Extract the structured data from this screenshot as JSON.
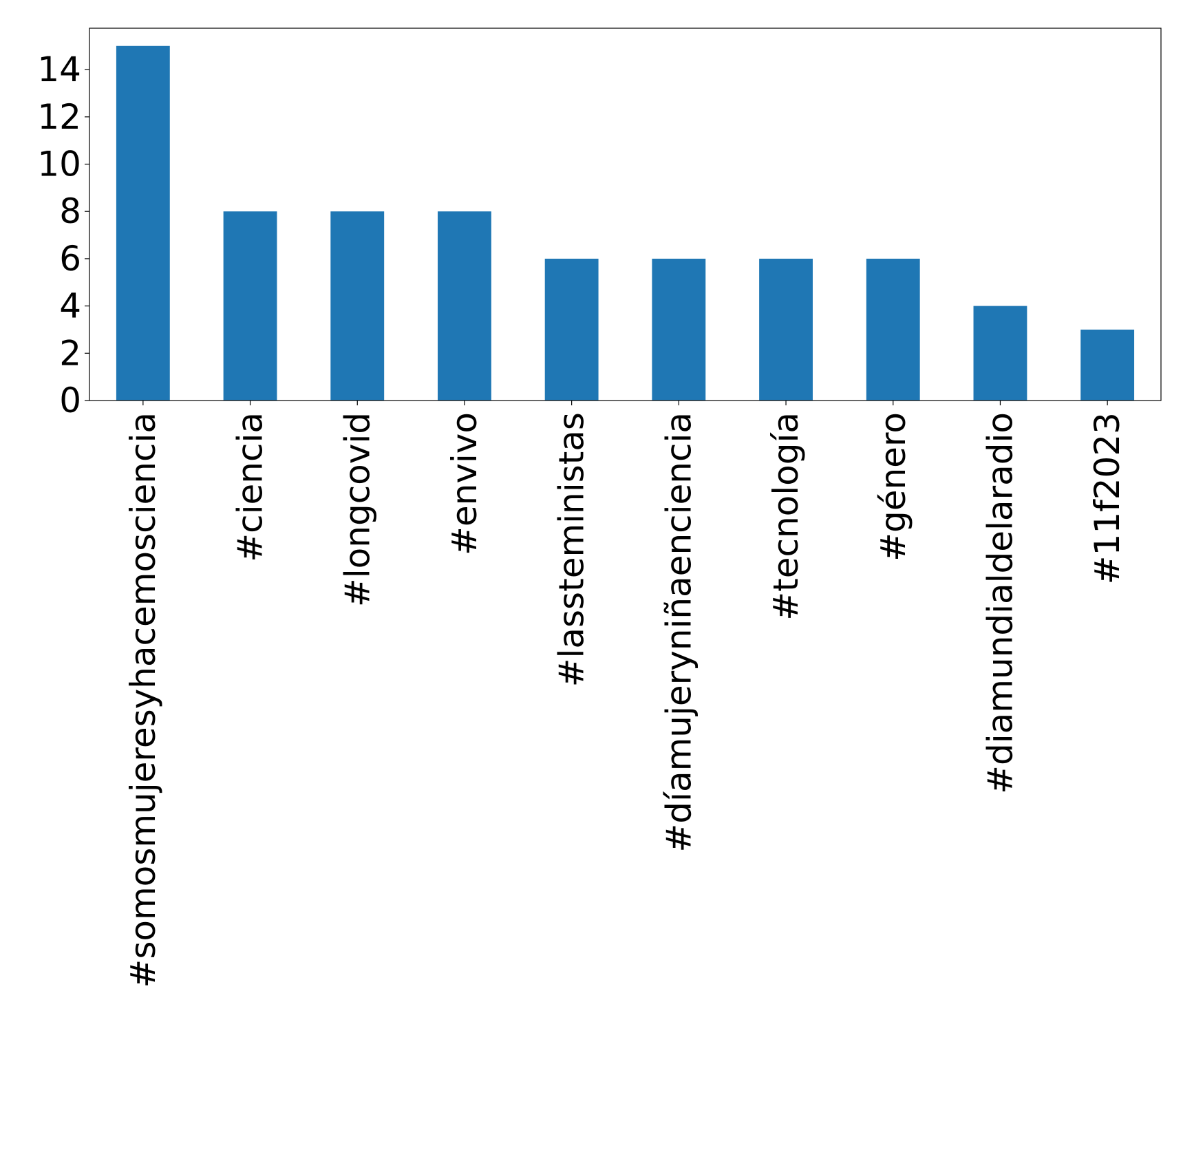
{
  "chart_data": {
    "type": "bar",
    "categories": [
      "#somosmujeresyhacemosciencia",
      "#ciencia",
      "#longcovid",
      "#envivo",
      "#lassteministas",
      "#díamujeryniñaenciencia",
      "#tecnología",
      "#género",
      "#diamundialdelaradio",
      "#11f2023"
    ],
    "values": [
      15,
      8,
      8,
      8,
      6,
      6,
      6,
      6,
      4,
      3
    ],
    "ylim": [
      0,
      15.75
    ],
    "yticks": [
      0,
      2,
      4,
      6,
      8,
      10,
      12,
      14
    ],
    "title": "",
    "xlabel": "",
    "ylabel": "",
    "grid": false,
    "colors": {
      "bar": "#1f77b4",
      "axis": "#000000"
    }
  }
}
